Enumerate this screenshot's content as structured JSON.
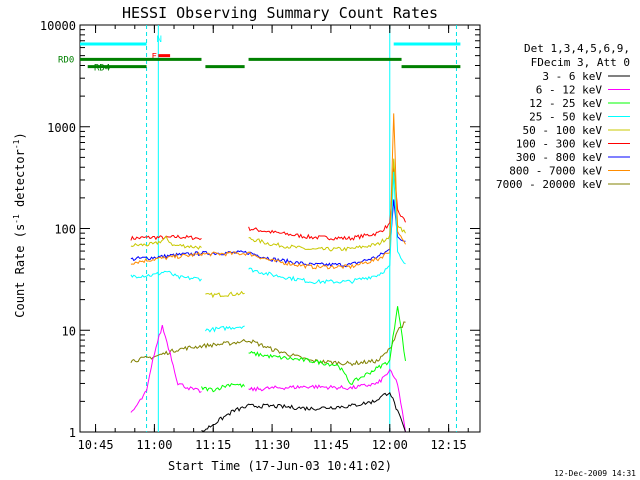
{
  "chart_data": {
    "type": "line",
    "title": "HESSI Observing Summary Count Rates",
    "xlabel": "Start Time (17-Jun-03 10:41:02)",
    "ylabel_main": "Count Rate (s",
    "ylabel_sup1": "-1",
    "ylabel_mid": " detector",
    "ylabel_sup2": "-1",
    "ylabel_end": ")",
    "y_scale": "log",
    "ylim": [
      1,
      10000
    ],
    "xlim_minutes": [
      10.683,
      12.383
    ],
    "x_ticks": [
      "10:45",
      "11:00",
      "11:15",
      "11:30",
      "11:45",
      "12:00",
      "12:15"
    ],
    "y_ticks": [
      "1",
      "10",
      "100",
      "1000",
      "10000"
    ],
    "timestamp": "12-Dec-2009 14:31",
    "legend_header": [
      "Det 1,3,4,5,6,9,",
      "FDecim 3, Att 0"
    ],
    "legend": [
      {
        "label": "3 - 6 keV",
        "color": "#000000"
      },
      {
        "label": "6 - 12 keV",
        "color": "#ff00ff"
      },
      {
        "label": "12 - 25 keV",
        "color": "#00ff00"
      },
      {
        "label": "25 - 50 keV",
        "color": "#00ffff"
      },
      {
        "label": "50 - 100 keV",
        "color": "#c8c800"
      },
      {
        "label": "100 - 300 keV",
        "color": "#ff0000"
      },
      {
        "label": "300 - 800 keV",
        "color": "#0000ff"
      },
      {
        "label": "800 - 7000 keV",
        "color": "#ff8c00"
      },
      {
        "label": "7000 - 20000 keV",
        "color": "#808000"
      }
    ],
    "flags": [
      {
        "label": "N",
        "color": "#00ffff",
        "y": 6500,
        "segments": [
          [
            "10:41",
            "10:58"
          ],
          [
            "12:01",
            "12:18"
          ]
        ]
      },
      {
        "label": "F",
        "color": "#ff0000",
        "y": 5000,
        "segments": [
          [
            "11:01",
            "11:04"
          ]
        ]
      },
      {
        "label": "RD0",
        "color": "#008000",
        "y": 4600,
        "segments": [
          [
            "10:41",
            "11:12"
          ],
          [
            "11:24",
            "12:03"
          ]
        ]
      },
      {
        "label": "RD4",
        "color": "#008000",
        "y": 3900,
        "segments": [
          [
            "10:43",
            "10:58"
          ],
          [
            "11:13",
            "11:23"
          ],
          [
            "12:03",
            "12:18"
          ]
        ]
      }
    ],
    "saa_boundaries": [
      "10:58",
      "12:17"
    ],
    "night_boundaries": [
      "11:01",
      "12:00"
    ],
    "series": [
      {
        "name": "100 - 300 keV",
        "color": "#ff0000",
        "segments": [
          {
            "times": [
              "10:54",
              "11:00",
              "11:03",
              "11:06",
              "11:12"
            ],
            "values": [
              80,
              82,
              81,
              83,
              80
            ]
          },
          {
            "times": [
              "11:24",
              "11:30",
              "11:40",
              "11:50",
              "11:57",
              "12:00",
              "12:01",
              "12:02",
              "12:04"
            ],
            "values": [
              100,
              92,
              82,
              80,
              90,
              110,
              400,
              150,
              115
            ]
          }
        ]
      },
      {
        "name": "50 - 100 keV",
        "color": "#c8c800",
        "segments": [
          {
            "times": [
              "10:54",
              "11:00",
              "11:03",
              "11:05",
              "11:07",
              "11:12"
            ],
            "values": [
              68,
              70,
              80,
              68,
              68,
              65
            ]
          },
          {
            "times": [
              "11:13",
              "11:23"
            ],
            "values": [
              22,
              23
            ]
          },
          {
            "times": [
              "11:24",
              "11:30",
              "11:40",
              "11:50",
              "11:57",
              "12:00",
              "12:01",
              "12:02",
              "12:04"
            ],
            "values": [
              80,
              70,
              62,
              63,
              70,
              85,
              500,
              110,
              90
            ]
          }
        ]
      },
      {
        "name": "300 - 800 keV",
        "color": "#0000ff",
        "segments": [
          {
            "times": [
              "10:54",
              "11:00",
              "11:06",
              "11:12"
            ],
            "values": [
              50,
              52,
              55,
              57
            ]
          },
          {
            "times": [
              "11:12",
              "11:24",
              "11:30",
              "11:40",
              "11:50",
              "11:57",
              "12:00",
              "12:01",
              "12:02",
              "12:04"
            ],
            "values": [
              57,
              58,
              50,
              44,
              44,
              53,
              62,
              200,
              80,
              75
            ]
          }
        ]
      },
      {
        "name": "800 - 7000 keV",
        "color": "#ff8c00",
        "segments": [
          {
            "times": [
              "10:54",
              "11:00",
              "11:06",
              "11:12"
            ],
            "values": [
              46,
              50,
              53,
              56
            ]
          },
          {
            "times": [
              "11:12",
              "11:24",
              "11:30",
              "11:40",
              "11:50",
              "11:57",
              "12:00",
              "12:01",
              "12:02",
              "12:04"
            ],
            "values": [
              56,
              57,
              48,
              42,
              42,
              50,
              60,
              1400,
              90,
              70
            ]
          }
        ]
      },
      {
        "name": "25 - 50 keV",
        "color": "#00ffff",
        "segments": [
          {
            "times": [
              "10:54",
              "11:00",
              "11:03",
              "11:06",
              "11:12"
            ],
            "values": [
              34,
              35,
              38,
              33,
              32
            ]
          },
          {
            "times": [
              "11:13",
              "11:23"
            ],
            "values": [
              10,
              11
            ]
          },
          {
            "times": [
              "11:24",
              "11:30",
              "11:40",
              "11:50",
              "11:57",
              "12:00",
              "12:01",
              "12:02",
              "12:04"
            ],
            "values": [
              40,
              35,
              30,
              30,
              35,
              42,
              350,
              60,
              45
            ]
          }
        ]
      },
      {
        "name": "7000 - 20000 keV",
        "color": "#808000",
        "segments": [
          {
            "times": [
              "10:54",
              "11:00",
              "11:06",
              "11:12",
              "11:20",
              "11:24",
              "11:30",
              "11:40",
              "11:50",
              "11:57",
              "12:00",
              "12:02",
              "12:04"
            ],
            "values": [
              5,
              5.5,
              6.5,
              7,
              7.5,
              8,
              6.5,
              5,
              4.7,
              5,
              6.5,
              10,
              12
            ]
          }
        ]
      },
      {
        "name": "6 - 12 keV",
        "color": "#ff00ff",
        "segments": [
          {
            "times": [
              "10:54",
              "10:58",
              "11:00",
              "11:02",
              "11:04",
              "11:06",
              "11:10",
              "11:12"
            ],
            "values": [
              1.5,
              2.5,
              6,
              11,
              6,
              3,
              2.6,
              2.5
            ]
          },
          {
            "times": [
              "11:24",
              "11:30",
              "11:40",
              "11:50",
              "11:57",
              "12:00",
              "12:02",
              "12:04"
            ],
            "values": [
              2.6,
              2.7,
              2.8,
              2.7,
              3,
              4,
              3,
              1
            ]
          }
        ]
      },
      {
        "name": "12 - 25 keV",
        "color": "#00ff00",
        "segments": [
          {
            "times": [
              "11:12",
              "11:15",
              "11:20",
              "11:23"
            ],
            "values": [
              2.7,
              2.6,
              3,
              2.8
            ]
          },
          {
            "times": [
              "11:24",
              "11:30",
              "11:40",
              "11:47",
              "11:50",
              "12:00",
              "12:02",
              "12:04"
            ],
            "values": [
              6,
              5.5,
              5,
              4.5,
              3,
              5,
              18,
              5
            ]
          }
        ]
      },
      {
        "name": "3 - 6 keV",
        "color": "#000000",
        "segments": [
          {
            "times": [
              "11:12",
              "11:20",
              "11:24",
              "11:30",
              "11:40",
              "11:50",
              "11:56",
              "12:00",
              "12:04"
            ],
            "values": [
              1,
              1.6,
              1.8,
              1.8,
              1.7,
              1.8,
              2,
              2.5,
              1
            ]
          }
        ]
      }
    ]
  }
}
